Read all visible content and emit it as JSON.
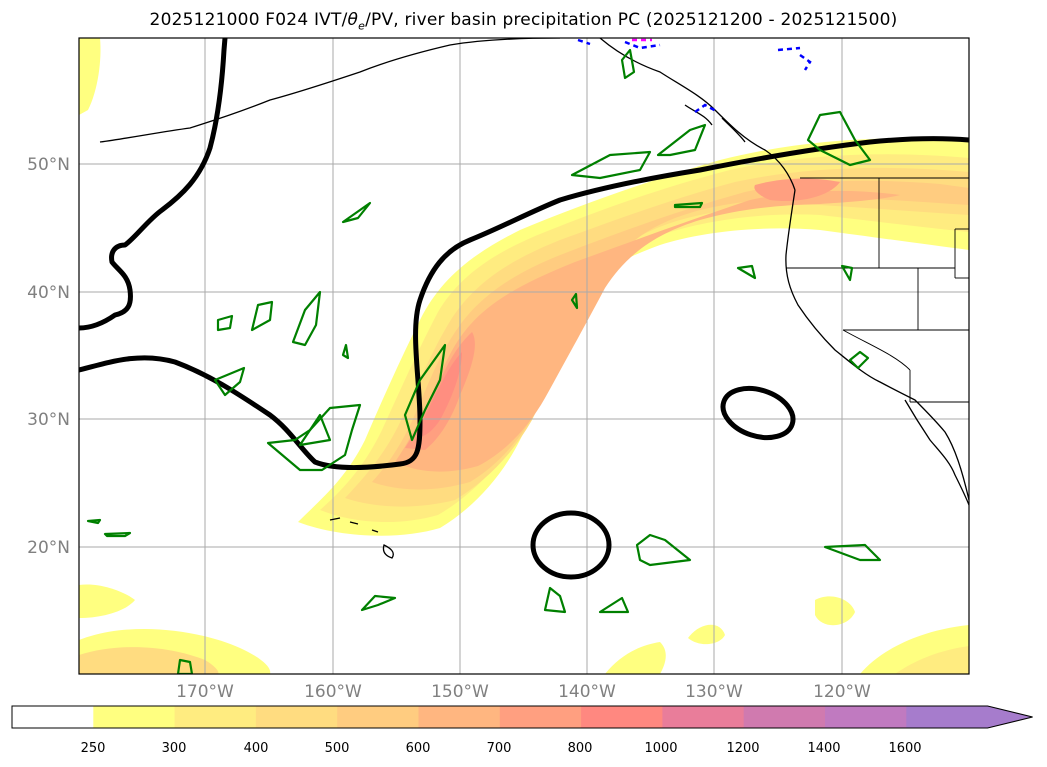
{
  "title": "2025121000 F024 IVT/θe/PV, river basin precipitation PC (2025121200 - 2025121500)",
  "title_parts": {
    "pre": "2025121000 F024 IVT/",
    "theta": "θ",
    "sub": "e",
    "post": "/PV, river basin precipitation PC (2025121200 - 2025121500)"
  },
  "lat_labels": [
    "50°N",
    "40°N",
    "30°N",
    "20°N"
  ],
  "lon_labels": [
    "170°W",
    "160°W",
    "150°W",
    "140°W",
    "130°W",
    "120°W"
  ],
  "colorbar": {
    "ticks": [
      "250",
      "300",
      "400",
      "500",
      "600",
      "700",
      "800",
      "1000",
      "1200",
      "1400",
      "1600"
    ],
    "colors": [
      "#ffffff",
      "#ffff80",
      "#ffec80",
      "#ffdc80",
      "#ffcc80",
      "#ffb680",
      "#ff9f80",
      "#ff8880",
      "#e97d9a",
      "#d07aaf",
      "#c07ac0",
      "#a67ccc"
    ]
  },
  "colors": {
    "ivt_core": "#ff8c78",
    "pv_contour": "#008000",
    "theta_contour": "#000000",
    "coast": "#000000",
    "blue": "#0000ff",
    "magenta": "#ff00ff"
  }
}
